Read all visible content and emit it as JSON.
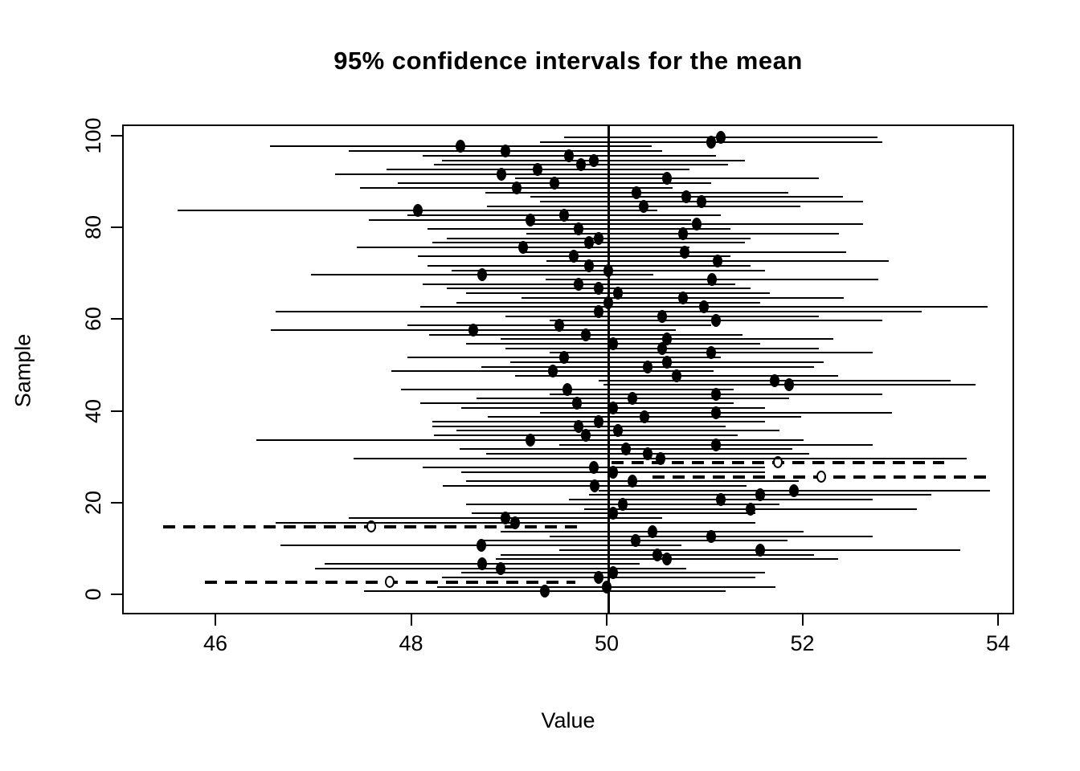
{
  "title": "95% confidence intervals for the mean",
  "x_axis": {
    "label": "Value",
    "ticks": [
      46,
      48,
      50,
      52,
      54
    ]
  },
  "y_axis": {
    "label": "Sample",
    "ticks": [
      0,
      20,
      40,
      60,
      80,
      100
    ]
  },
  "colors": {
    "foreground": "#000000",
    "background": "#ffffff"
  },
  "chart_data": {
    "type": "scatter",
    "subtype": "confidence-interval-plot",
    "title": "95% confidence intervals for the mean",
    "xlabel": "Value",
    "ylabel": "Sample",
    "xlim": [
      45.0,
      54.2
    ],
    "ylim": [
      0,
      100
    ],
    "grid": false,
    "legend": false,
    "true_mean_reference": 50,
    "confidence_level": 0.95,
    "n_samples": 100,
    "style_note": "solid line + filled dot = CI covers 50; thick dashed line + open circle = CI misses 50",
    "intervals": [
      {
        "sample": 1,
        "lo": 47.5,
        "mean": 49.35,
        "hi": 51.2,
        "covers": true
      },
      {
        "sample": 2,
        "lo": 48.25,
        "mean": 49.98,
        "hi": 51.71,
        "covers": true
      },
      {
        "sample": 3,
        "lo": 45.88,
        "mean": 47.77,
        "hi": 49.66,
        "covers": false
      },
      {
        "sample": 4,
        "lo": 48.3,
        "mean": 49.9,
        "hi": 51.5,
        "covers": true
      },
      {
        "sample": 5,
        "lo": 48.5,
        "mean": 50.05,
        "hi": 51.6,
        "covers": true
      },
      {
        "sample": 6,
        "lo": 47.0,
        "mean": 48.9,
        "hi": 50.8,
        "covers": true
      },
      {
        "sample": 7,
        "lo": 47.1,
        "mean": 48.71,
        "hi": 50.32,
        "covers": true
      },
      {
        "sample": 8,
        "lo": 48.85,
        "mean": 50.6,
        "hi": 52.35,
        "covers": true
      },
      {
        "sample": 9,
        "lo": 48.9,
        "mean": 50.5,
        "hi": 52.1,
        "covers": true
      },
      {
        "sample": 10,
        "lo": 49.5,
        "mean": 51.55,
        "hi": 53.6,
        "covers": true
      },
      {
        "sample": 11,
        "lo": 46.65,
        "mean": 48.7,
        "hi": 50.75,
        "covers": true
      },
      {
        "sample": 12,
        "lo": 48.73,
        "mean": 50.28,
        "hi": 51.83,
        "covers": true
      },
      {
        "sample": 13,
        "lo": 49.4,
        "mean": 51.05,
        "hi": 52.7,
        "covers": true
      },
      {
        "sample": 14,
        "lo": 48.9,
        "mean": 50.45,
        "hi": 52.0,
        "covers": true
      },
      {
        "sample": 15,
        "lo": 45.45,
        "mean": 47.58,
        "hi": 49.71,
        "covers": false
      },
      {
        "sample": 16,
        "lo": 46.6,
        "mean": 49.05,
        "hi": 51.5,
        "covers": true
      },
      {
        "sample": 17,
        "lo": 47.35,
        "mean": 48.95,
        "hi": 50.55,
        "covers": true
      },
      {
        "sample": 18,
        "lo": 48.6,
        "mean": 50.05,
        "hi": 51.5,
        "covers": true
      },
      {
        "sample": 19,
        "lo": 49.75,
        "mean": 51.45,
        "hi": 53.15,
        "covers": true
      },
      {
        "sample": 20,
        "lo": 48.55,
        "mean": 50.15,
        "hi": 51.75,
        "covers": true
      },
      {
        "sample": 21,
        "lo": 49.6,
        "mean": 51.15,
        "hi": 52.7,
        "covers": true
      },
      {
        "sample": 22,
        "lo": 49.8,
        "mean": 51.55,
        "hi": 53.3,
        "covers": true
      },
      {
        "sample": 23,
        "lo": 49.9,
        "mean": 51.9,
        "hi": 53.9,
        "covers": true
      },
      {
        "sample": 24,
        "lo": 48.31,
        "mean": 49.86,
        "hi": 51.41,
        "covers": true
      },
      {
        "sample": 25,
        "lo": 48.55,
        "mean": 50.25,
        "hi": 51.95,
        "covers": true
      },
      {
        "sample": 26,
        "lo": 50.45,
        "mean": 52.18,
        "hi": 53.91,
        "covers": false
      },
      {
        "sample": 27,
        "lo": 48.5,
        "mean": 50.05,
        "hi": 51.6,
        "covers": true
      },
      {
        "sample": 28,
        "lo": 48.1,
        "mean": 49.85,
        "hi": 51.6,
        "covers": true
      },
      {
        "sample": 29,
        "lo": 50.03,
        "mean": 51.73,
        "hi": 53.43,
        "covers": false
      },
      {
        "sample": 30,
        "lo": 47.4,
        "mean": 50.53,
        "hi": 53.66,
        "covers": true
      },
      {
        "sample": 31,
        "lo": 48.75,
        "mean": 50.4,
        "hi": 52.05,
        "covers": true
      },
      {
        "sample": 32,
        "lo": 48.48,
        "mean": 50.18,
        "hi": 51.88,
        "covers": true
      },
      {
        "sample": 33,
        "lo": 49.5,
        "mean": 51.1,
        "hi": 52.7,
        "covers": true
      },
      {
        "sample": 34,
        "lo": 46.4,
        "mean": 49.2,
        "hi": 52.0,
        "covers": true
      },
      {
        "sample": 35,
        "lo": 48.22,
        "mean": 49.77,
        "hi": 51.32,
        "covers": true
      },
      {
        "sample": 36,
        "lo": 48.45,
        "mean": 50.1,
        "hi": 51.75,
        "covers": true
      },
      {
        "sample": 37,
        "lo": 48.2,
        "mean": 49.7,
        "hi": 51.2,
        "covers": true
      },
      {
        "sample": 38,
        "lo": 48.2,
        "mean": 49.9,
        "hi": 51.6,
        "covers": true
      },
      {
        "sample": 39,
        "lo": 48.77,
        "mean": 50.37,
        "hi": 51.97,
        "covers": true
      },
      {
        "sample": 40,
        "lo": 49.3,
        "mean": 51.1,
        "hi": 52.9,
        "covers": true
      },
      {
        "sample": 41,
        "lo": 48.5,
        "mean": 50.05,
        "hi": 51.6,
        "covers": true
      },
      {
        "sample": 42,
        "lo": 48.08,
        "mean": 49.68,
        "hi": 51.28,
        "covers": true
      },
      {
        "sample": 43,
        "lo": 48.65,
        "mean": 50.25,
        "hi": 51.85,
        "covers": true
      },
      {
        "sample": 44,
        "lo": 49.4,
        "mean": 51.1,
        "hi": 52.8,
        "covers": true
      },
      {
        "sample": 45,
        "lo": 47.88,
        "mean": 49.58,
        "hi": 51.28,
        "covers": true
      },
      {
        "sample": 46,
        "lo": 49.95,
        "mean": 51.85,
        "hi": 53.75,
        "covers": true
      },
      {
        "sample": 47,
        "lo": 49.9,
        "mean": 51.7,
        "hi": 53.5,
        "covers": true
      },
      {
        "sample": 48,
        "lo": 49.05,
        "mean": 50.7,
        "hi": 52.35,
        "covers": true
      },
      {
        "sample": 49,
        "lo": 47.78,
        "mean": 49.43,
        "hi": 51.08,
        "covers": true
      },
      {
        "sample": 50,
        "lo": 48.7,
        "mean": 50.4,
        "hi": 52.1,
        "covers": true
      },
      {
        "sample": 51,
        "lo": 49.0,
        "mean": 50.6,
        "hi": 52.2,
        "covers": true
      },
      {
        "sample": 52,
        "lo": 47.95,
        "mean": 49.55,
        "hi": 51.15,
        "covers": true
      },
      {
        "sample": 53,
        "lo": 49.4,
        "mean": 51.05,
        "hi": 52.7,
        "covers": true
      },
      {
        "sample": 54,
        "lo": 48.95,
        "mean": 50.55,
        "hi": 52.15,
        "covers": true
      },
      {
        "sample": 55,
        "lo": 48.55,
        "mean": 50.05,
        "hi": 51.55,
        "covers": true
      },
      {
        "sample": 56,
        "lo": 48.9,
        "mean": 50.6,
        "hi": 52.3,
        "covers": true
      },
      {
        "sample": 57,
        "lo": 48.17,
        "mean": 49.77,
        "hi": 51.37,
        "covers": true
      },
      {
        "sample": 58,
        "lo": 46.55,
        "mean": 48.62,
        "hi": 50.69,
        "covers": true
      },
      {
        "sample": 59,
        "lo": 47.95,
        "mean": 49.5,
        "hi": 51.05,
        "covers": true
      },
      {
        "sample": 60,
        "lo": 49.4,
        "mean": 51.1,
        "hi": 52.8,
        "covers": true
      },
      {
        "sample": 61,
        "lo": 48.95,
        "mean": 50.55,
        "hi": 52.15,
        "covers": true
      },
      {
        "sample": 62,
        "lo": 46.6,
        "mean": 49.9,
        "hi": 53.2,
        "covers": true
      },
      {
        "sample": 63,
        "lo": 48.08,
        "mean": 50.98,
        "hi": 53.88,
        "covers": true
      },
      {
        "sample": 64,
        "lo": 48.45,
        "mean": 50.0,
        "hi": 51.55,
        "covers": true
      },
      {
        "sample": 65,
        "lo": 49.11,
        "mean": 50.76,
        "hi": 52.41,
        "covers": true
      },
      {
        "sample": 66,
        "lo": 48.55,
        "mean": 50.1,
        "hi": 51.65,
        "covers": true
      },
      {
        "sample": 67,
        "lo": 48.35,
        "mean": 49.9,
        "hi": 51.45,
        "covers": true
      },
      {
        "sample": 68,
        "lo": 48.1,
        "mean": 49.7,
        "hi": 51.3,
        "covers": true
      },
      {
        "sample": 69,
        "lo": 49.36,
        "mean": 51.06,
        "hi": 52.76,
        "covers": true
      },
      {
        "sample": 70,
        "lo": 46.96,
        "mean": 48.71,
        "hi": 50.46,
        "covers": true
      },
      {
        "sample": 71,
        "lo": 48.4,
        "mean": 50.0,
        "hi": 51.6,
        "covers": true
      },
      {
        "sample": 72,
        "lo": 48.15,
        "mean": 49.8,
        "hi": 51.45,
        "covers": true
      },
      {
        "sample": 73,
        "lo": 49.37,
        "mean": 51.12,
        "hi": 52.87,
        "covers": true
      },
      {
        "sample": 74,
        "lo": 48.05,
        "mean": 49.65,
        "hi": 51.25,
        "covers": true
      },
      {
        "sample": 75,
        "lo": 49.13,
        "mean": 50.78,
        "hi": 52.43,
        "covers": true
      },
      {
        "sample": 76,
        "lo": 47.43,
        "mean": 49.13,
        "hi": 50.83,
        "covers": true
      },
      {
        "sample": 77,
        "lo": 48.2,
        "mean": 49.8,
        "hi": 51.4,
        "covers": true
      },
      {
        "sample": 78,
        "lo": 48.35,
        "mean": 49.9,
        "hi": 51.45,
        "covers": true
      },
      {
        "sample": 79,
        "lo": 49.16,
        "mean": 50.76,
        "hi": 52.36,
        "covers": true
      },
      {
        "sample": 80,
        "lo": 48.15,
        "mean": 49.7,
        "hi": 51.25,
        "covers": true
      },
      {
        "sample": 81,
        "lo": 49.2,
        "mean": 50.9,
        "hi": 52.6,
        "covers": true
      },
      {
        "sample": 82,
        "lo": 47.55,
        "mean": 49.2,
        "hi": 50.85,
        "covers": true
      },
      {
        "sample": 83,
        "lo": 47.95,
        "mean": 49.55,
        "hi": 51.15,
        "covers": true
      },
      {
        "sample": 84,
        "lo": 45.6,
        "mean": 48.05,
        "hi": 50.5,
        "covers": true
      },
      {
        "sample": 85,
        "lo": 48.76,
        "mean": 50.36,
        "hi": 51.96,
        "covers": true
      },
      {
        "sample": 86,
        "lo": 49.3,
        "mean": 50.95,
        "hi": 52.6,
        "covers": true
      },
      {
        "sample": 87,
        "lo": 49.2,
        "mean": 50.8,
        "hi": 52.4,
        "covers": true
      },
      {
        "sample": 88,
        "lo": 48.74,
        "mean": 50.29,
        "hi": 51.84,
        "covers": true
      },
      {
        "sample": 89,
        "lo": 47.46,
        "mean": 49.06,
        "hi": 50.66,
        "covers": true
      },
      {
        "sample": 90,
        "lo": 47.85,
        "mean": 49.45,
        "hi": 51.05,
        "covers": true
      },
      {
        "sample": 91,
        "lo": 49.05,
        "mean": 50.6,
        "hi": 52.15,
        "covers": true
      },
      {
        "sample": 92,
        "lo": 47.21,
        "mean": 48.91,
        "hi": 50.61,
        "covers": true
      },
      {
        "sample": 93,
        "lo": 47.73,
        "mean": 49.28,
        "hi": 50.83,
        "covers": true
      },
      {
        "sample": 94,
        "lo": 48.22,
        "mean": 49.72,
        "hi": 51.22,
        "covers": true
      },
      {
        "sample": 95,
        "lo": 48.3,
        "mean": 49.85,
        "hi": 51.4,
        "covers": true
      },
      {
        "sample": 96,
        "lo": 48.1,
        "mean": 49.6,
        "hi": 51.1,
        "covers": true
      },
      {
        "sample": 97,
        "lo": 47.35,
        "mean": 48.95,
        "hi": 50.55,
        "covers": true
      },
      {
        "sample": 98,
        "lo": 46.54,
        "mean": 48.49,
        "hi": 50.44,
        "covers": true
      },
      {
        "sample": 99,
        "lo": 49.3,
        "mean": 51.05,
        "hi": 52.8,
        "covers": true
      },
      {
        "sample": 100,
        "lo": 49.55,
        "mean": 51.15,
        "hi": 52.75,
        "covers": true
      }
    ]
  }
}
